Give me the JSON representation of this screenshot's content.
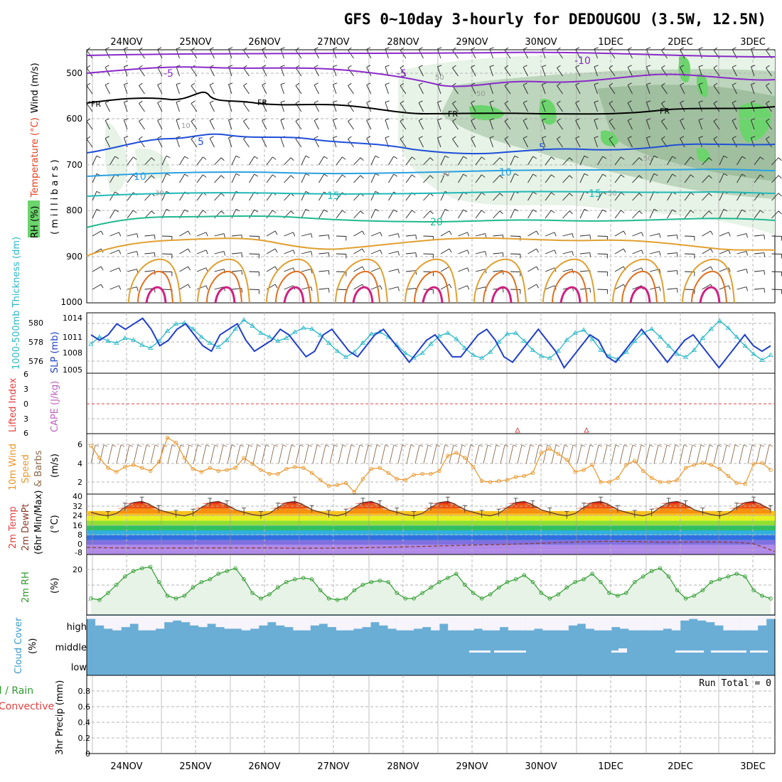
{
  "title": "GFS 0~10day 3-hourly for DEDOUGOU (3.5W, 12.5N)",
  "dates": [
    "24NOV",
    "25NOV",
    "26NOV",
    "27NOV",
    "28NOV",
    "29NOV",
    "30NOV",
    "1DEC",
    "2DEC",
    "3DEC"
  ],
  "colors": {
    "frame": "#000000",
    "grid": "#b4b4b4",
    "rh_light": "#e6f3e6",
    "rh_mid": "#bcd5bc",
    "rh_dark": "#9fbf9f",
    "rh_green": "#6cd46c",
    "slp": "#1f3fc8",
    "thickness": "#2ab8c8",
    "wind10": "#e8962a",
    "barb10": "#8a6a4a",
    "rh2m": "#2e9a2e",
    "cloud": "#6aaed6",
    "li_zero": "#e04040",
    "cape_marker": "#e05050"
  },
  "panels": {
    "upper": {
      "ylabel_parts": [
        "RH (%)",
        "Temperature (°C)",
        "Wind (m/s)"
      ],
      "ylabel_unit": "(millibars)",
      "ticks": [
        "500",
        "600",
        "700",
        "800",
        "900",
        "1000"
      ],
      "contour_labels": [
        "-10",
        "-5",
        "-5",
        "FR",
        "FR",
        "FR",
        "FR",
        "-5",
        "5",
        "5",
        "-10",
        "10",
        "10",
        "15",
        "15",
        "20",
        "30",
        "30",
        "50",
        "50",
        "50",
        "30",
        "10"
      ]
    },
    "slp": {
      "label_left": "1000-500mb Thickness (dm)",
      "label_right": "SLP (mb)",
      "ticks_left": [
        "580",
        "578",
        "576"
      ],
      "ticks_right": [
        "1014",
        "1011",
        "1008",
        "1005"
      ]
    },
    "li": {
      "label_left": "Lifted Index",
      "label_right": "CAPE (J/kg)",
      "ticks": [
        "6",
        "3",
        "0",
        "3",
        "6"
      ]
    },
    "wind10": {
      "label1": "10m Wind",
      "label2": "Speed",
      "label3": "& Barbs",
      "unit": "(m/s)",
      "ticks": [
        "6",
        "4",
        "2"
      ]
    },
    "temp": {
      "label1": "2m Temp",
      "label2": "2m DewPt",
      "label3": "(6hr Min/Max)",
      "unit": "(°C)",
      "ticks": [
        "40",
        "32",
        "24",
        "16",
        "8",
        "0",
        "-8"
      ]
    },
    "rh2m": {
      "label": "2m RH",
      "unit": "(%)",
      "ticks": [
        "20"
      ]
    },
    "cloud": {
      "label": "Cloud Cover",
      "unit": "(%)",
      "levels": [
        "high",
        "middle",
        "low"
      ]
    },
    "precip": {
      "label1": "Total / Rain",
      "label2": "Convective",
      "label3": "3hr Precip (mm)",
      "ticks": [
        "0.8",
        "0.6",
        "0.4",
        "0.2",
        "0"
      ],
      "run_total": "Run Total = 0"
    }
  },
  "chart_data": [
    {
      "type": "line",
      "name": "slp",
      "ylabel": "SLP (mb)",
      "ylim": [
        1004,
        1015
      ],
      "x_step_hours": 3,
      "values": [
        1011,
        1010,
        1011,
        1013,
        1012,
        1013,
        1014,
        1012,
        1009,
        1010,
        1012,
        1013,
        1011,
        1009,
        1008,
        1011,
        1012,
        1013,
        1010,
        1008,
        1009,
        1010,
        1012,
        1011,
        1009,
        1007,
        1008,
        1011,
        1012,
        1010,
        1008,
        1007,
        1009,
        1011,
        1012,
        1010,
        1008,
        1006,
        1008,
        1010,
        1011,
        1009,
        1007,
        1007,
        1009,
        1011,
        1012,
        1010,
        1007,
        1006,
        1008,
        1010,
        1012,
        1010,
        1008,
        1005,
        1007,
        1009,
        1011,
        1010,
        1007,
        1006,
        1008,
        1010,
        1012,
        1010,
        1008,
        1006,
        1008,
        1010,
        1011,
        1009,
        1007,
        1005,
        1007,
        1009,
        1011,
        1009,
        1008,
        1009
      ]
    },
    {
      "type": "line",
      "name": "thickness",
      "ylabel": "1000-500mb Thickness (dm)",
      "ylim": [
        575,
        581
      ],
      "x_step_hours": 3,
      "values": [
        577.9,
        578.6,
        578.2,
        578.0,
        578.5,
        578.3,
        577.8,
        577.5,
        578.2,
        579.2,
        579.9,
        580.0,
        579.4,
        578.6,
        578.0,
        577.6,
        578.3,
        579.4,
        580.3,
        579.7,
        579.0,
        578.6,
        578.2,
        578.5,
        579.1,
        579.5,
        579.4,
        578.8,
        578.0,
        577.2,
        576.6,
        577.1,
        578.0,
        578.9,
        579.1,
        578.6,
        577.8,
        577.0,
        576.5,
        577.0,
        577.9,
        578.7,
        579.0,
        578.4,
        577.5,
        576.8,
        576.5,
        577.1,
        578.1,
        578.9,
        579.0,
        578.2,
        577.3,
        576.7,
        576.5,
        577.2,
        578.3,
        579.0,
        579.3,
        578.4,
        577.3,
        576.7,
        576.4,
        577.1,
        578.2,
        579.0,
        579.4,
        578.6,
        577.7,
        576.9,
        576.6,
        577.3,
        578.5,
        579.4,
        580.2,
        579.5,
        578.6,
        577.7,
        576.9,
        576.3,
        576.8
      ]
    },
    {
      "type": "line",
      "name": "wind10m_speed",
      "ylabel": "10m Wind Speed (m/s)",
      "ylim": [
        1,
        7
      ],
      "x_step_hours": 3,
      "values": [
        5.8,
        4.6,
        3.6,
        3.2,
        3.7,
        3.9,
        3.6,
        3.3,
        4.2,
        6.6,
        6.1,
        4.6,
        3.5,
        3.2,
        3.6,
        3.3,
        3.4,
        3.6,
        4.6,
        4.0,
        3.4,
        3.0,
        3.0,
        3.5,
        3.7,
        3.6,
        3.1,
        2.4,
        1.8,
        1.9,
        2.1,
        1.2,
        2.5,
        3.5,
        3.6,
        3.1,
        2.5,
        2.4,
        2.9,
        3.0,
        3.0,
        3.3,
        4.8,
        5.1,
        4.6,
        3.7,
        2.3,
        2.2,
        2.3,
        2.4,
        2.7,
        2.8,
        3.1,
        5.1,
        5.5,
        5.0,
        4.4,
        3.2,
        3.4,
        3.9,
        2.2,
        2.2,
        2.6,
        3.9,
        4.3,
        3.3,
        2.6,
        2.2,
        2.2,
        2.4,
        3.6,
        3.9,
        4.1,
        3.9,
        3.5,
        2.8,
        2.1,
        2.0,
        4.0,
        4.1,
        3.4
      ]
    },
    {
      "type": "line",
      "name": "temp2m",
      "ylabel": "2m Temp (°C)",
      "ylim": [
        -10,
        40
      ],
      "x_step_hours": 3,
      "values": [
        25,
        23,
        22,
        24,
        29,
        33,
        34,
        31,
        27,
        25,
        23,
        22,
        24,
        29,
        33,
        34,
        31,
        27,
        25,
        23,
        22,
        24,
        29,
        33,
        34,
        31,
        27,
        25,
        23,
        22,
        24,
        29,
        33,
        34,
        31,
        27,
        25,
        23,
        22,
        24,
        29,
        33,
        34,
        31,
        27,
        25,
        23,
        22,
        24,
        29,
        33,
        34,
        31,
        27,
        25,
        23,
        22,
        24,
        29,
        33,
        34,
        31,
        27,
        25,
        23,
        22,
        24,
        29,
        33,
        34,
        31,
        27,
        25,
        23,
        22,
        24,
        29,
        33,
        34,
        31,
        27
      ]
    },
    {
      "type": "line",
      "name": "rh2m",
      "ylabel": "2m RH (%)",
      "ylim": [
        5,
        27
      ],
      "x_step_hours": 3,
      "values": [
        11,
        10.5,
        13,
        16,
        19,
        21,
        22,
        22.5,
        17,
        12,
        11,
        12,
        15,
        17,
        18,
        20,
        21,
        22,
        18,
        13,
        11,
        12.5,
        15,
        17,
        18,
        18.5,
        18,
        14,
        11,
        10.5,
        11,
        14,
        16,
        17,
        17.5,
        17,
        13,
        11,
        11,
        13,
        15,
        17,
        18.5,
        20,
        16,
        13,
        11,
        12.5,
        15,
        17,
        18,
        19.5,
        17,
        13,
        11,
        12.5,
        15,
        17,
        18,
        20,
        17,
        13,
        12,
        13,
        17,
        19,
        21,
        22,
        19,
        14,
        11,
        12,
        14,
        17,
        18,
        19,
        20,
        19,
        14,
        12,
        11
      ]
    },
    {
      "type": "bar",
      "name": "precip3hr",
      "ylabel": "3hr Precip (mm)",
      "ylim": [
        0,
        1
      ],
      "values": []
    }
  ]
}
